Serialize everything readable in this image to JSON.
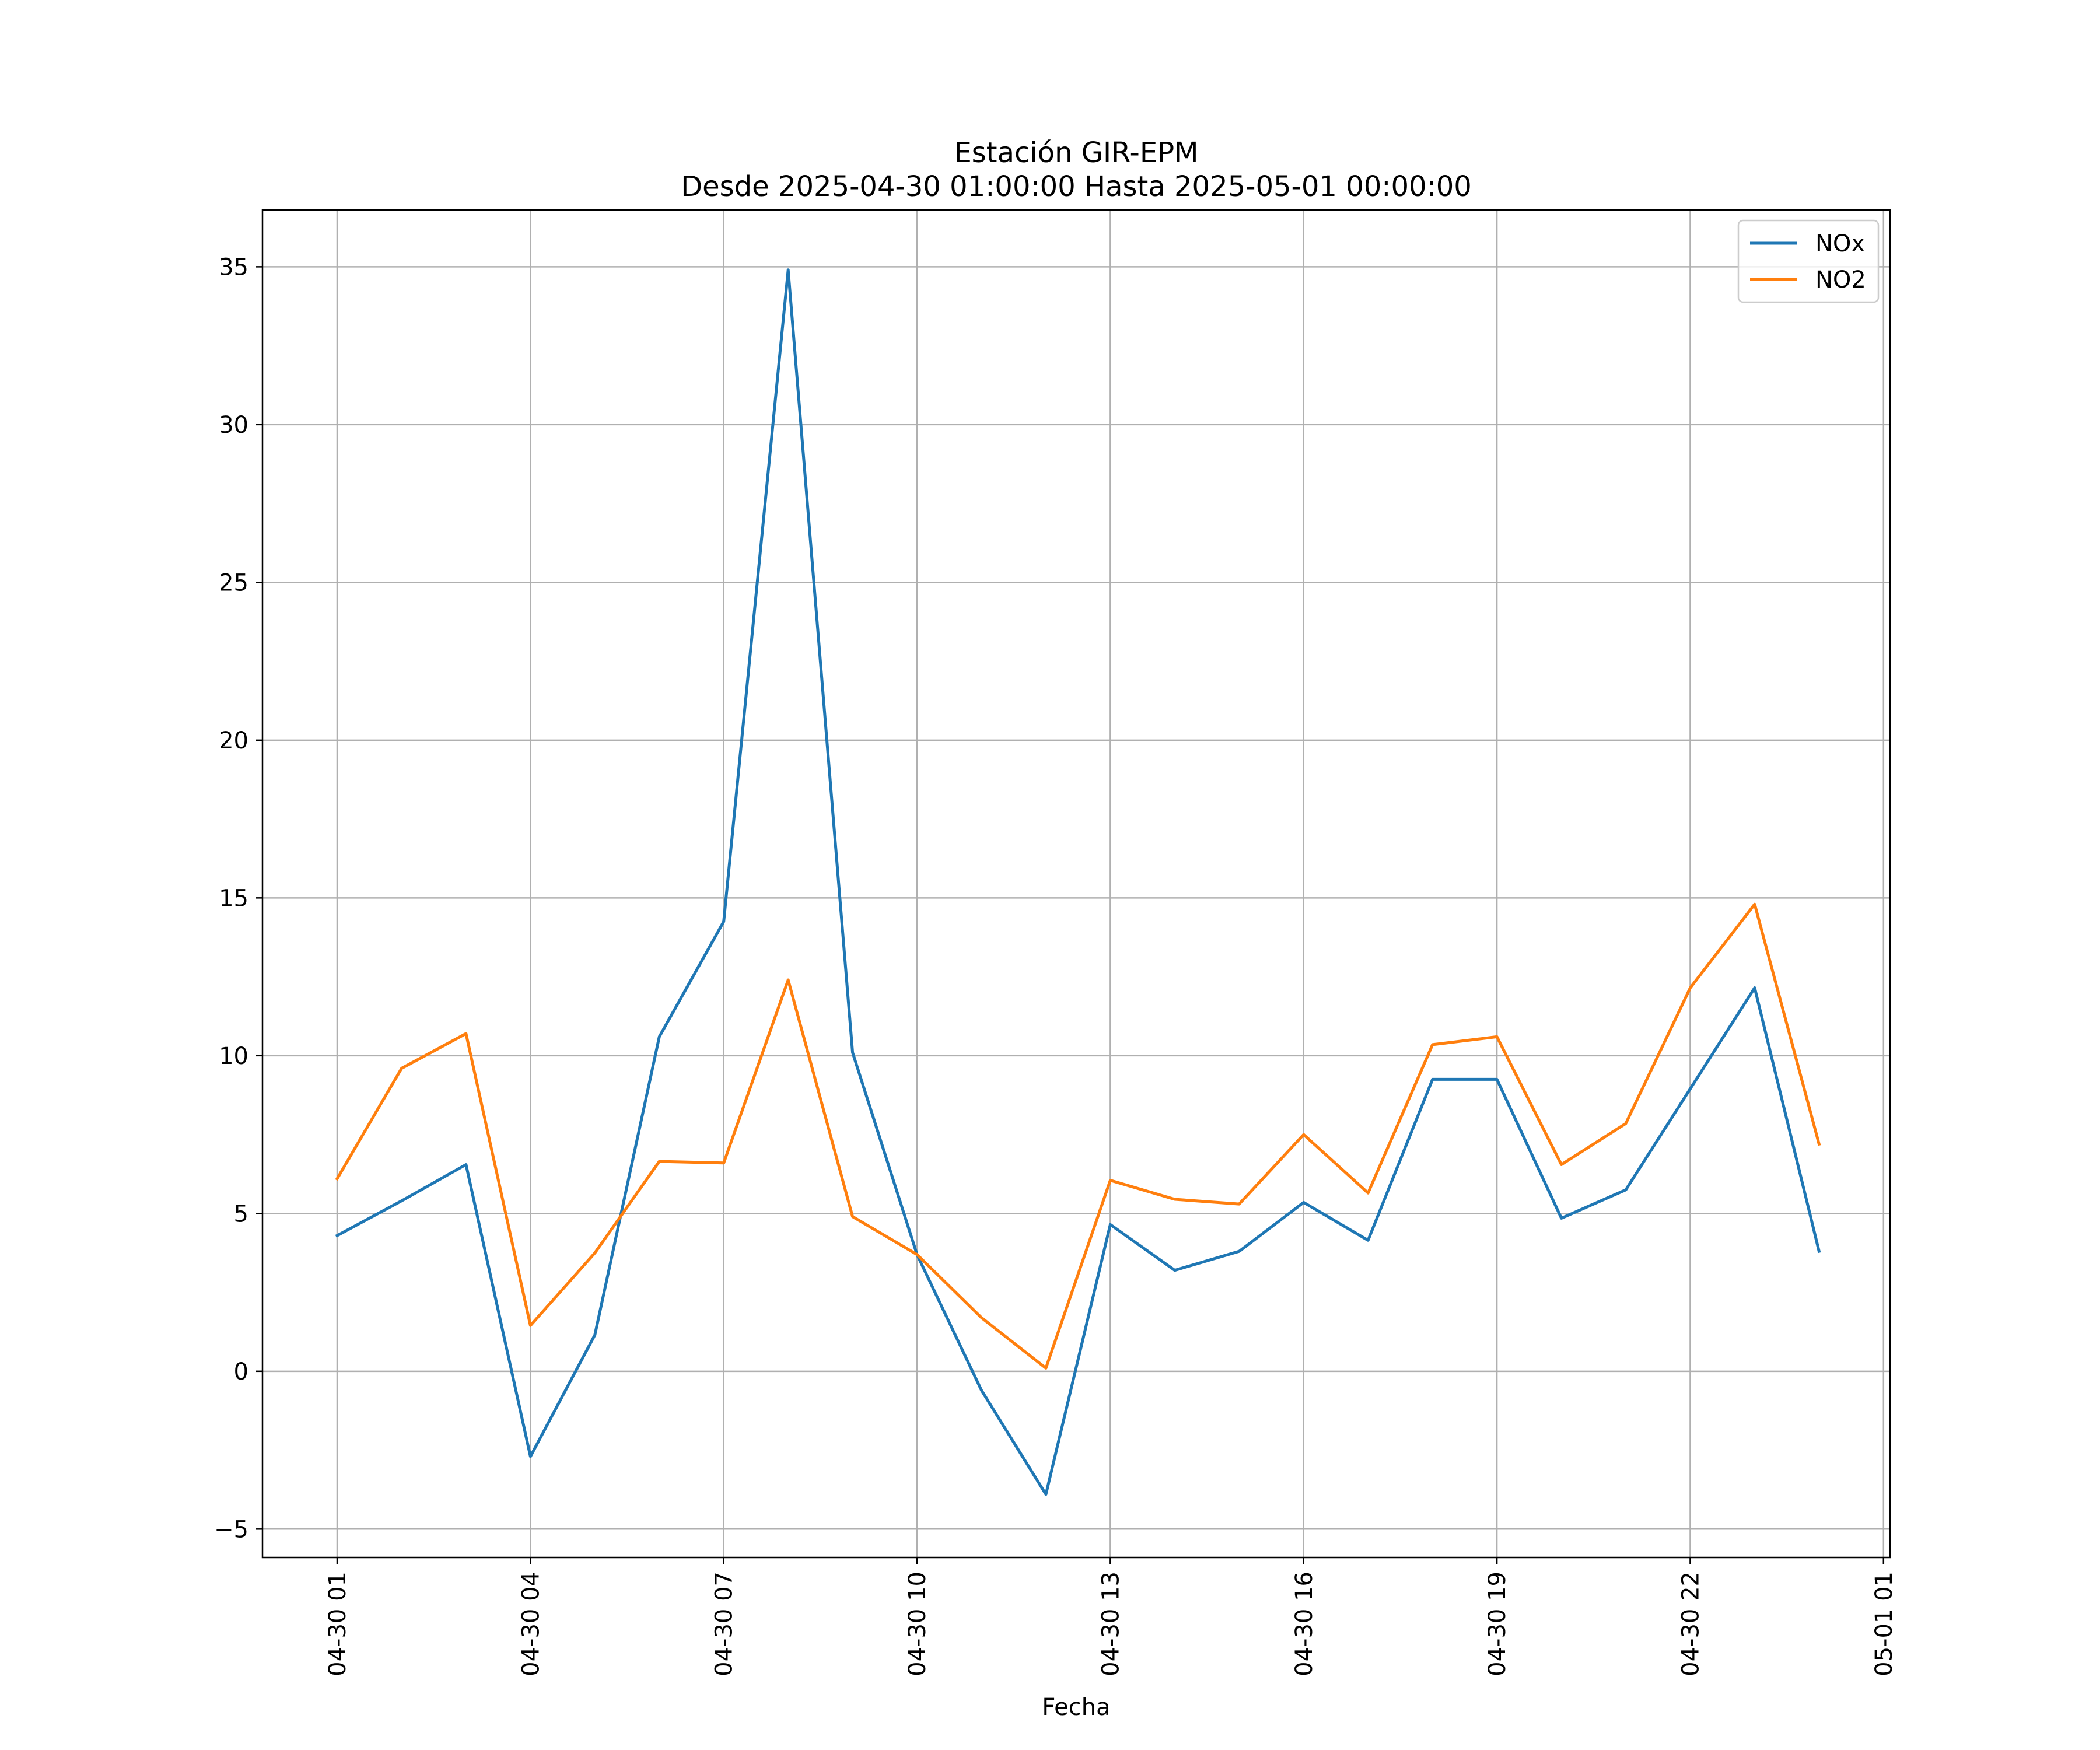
{
  "chart_data": {
    "type": "line",
    "title": "Estación GIR-EPM",
    "subtitle": "Desde 2025-04-30 01:00:00 Hasta 2025-05-01 00:00:00",
    "xlabel": "Fecha",
    "ylabel": "",
    "x": [
      "2025-04-30 01:00",
      "2025-04-30 02:00",
      "2025-04-30 03:00",
      "2025-04-30 04:00",
      "2025-04-30 05:00",
      "2025-04-30 06:00",
      "2025-04-30 07:00",
      "2025-04-30 08:00",
      "2025-04-30 09:00",
      "2025-04-30 10:00",
      "2025-04-30 11:00",
      "2025-04-30 12:00",
      "2025-04-30 13:00",
      "2025-04-30 14:00",
      "2025-04-30 15:00",
      "2025-04-30 16:00",
      "2025-04-30 17:00",
      "2025-04-30 18:00",
      "2025-04-30 19:00",
      "2025-04-30 20:00",
      "2025-04-30 21:00",
      "2025-04-30 22:00",
      "2025-04-30 23:00",
      "2025-05-01 00:00"
    ],
    "x_tick_labels": [
      "04-30 01",
      "04-30 04",
      "04-30 07",
      "04-30 10",
      "04-30 13",
      "04-30 16",
      "04-30 19",
      "04-30 22",
      "05-01 01"
    ],
    "y_ticks": [
      -5,
      0,
      5,
      10,
      15,
      20,
      25,
      30,
      35
    ],
    "y_tick_labels": [
      "−5",
      "0",
      "5",
      "10",
      "15",
      "20",
      "25",
      "30",
      "35"
    ],
    "ylim": [
      -5.9,
      36.8
    ],
    "grid": true,
    "legend_position": "top-right",
    "series": [
      {
        "name": "NOx",
        "color": "#1f77b4",
        "values": [
          4.3,
          5.4,
          6.55,
          -2.7,
          1.15,
          10.6,
          14.25,
          34.9,
          10.1,
          3.7,
          -0.6,
          -3.9,
          4.65,
          3.2,
          3.8,
          5.35,
          4.15,
          9.25,
          9.25,
          4.85,
          5.75,
          8.95,
          12.15,
          3.8
        ]
      },
      {
        "name": "NO2",
        "color": "#ff7f0e",
        "values": [
          6.1,
          9.6,
          10.7,
          1.45,
          3.75,
          6.65,
          6.6,
          12.4,
          4.9,
          3.7,
          1.7,
          0.1,
          6.05,
          5.45,
          5.3,
          7.5,
          5.65,
          10.35,
          10.6,
          6.55,
          7.85,
          12.15,
          14.8,
          7.2
        ]
      }
    ]
  }
}
